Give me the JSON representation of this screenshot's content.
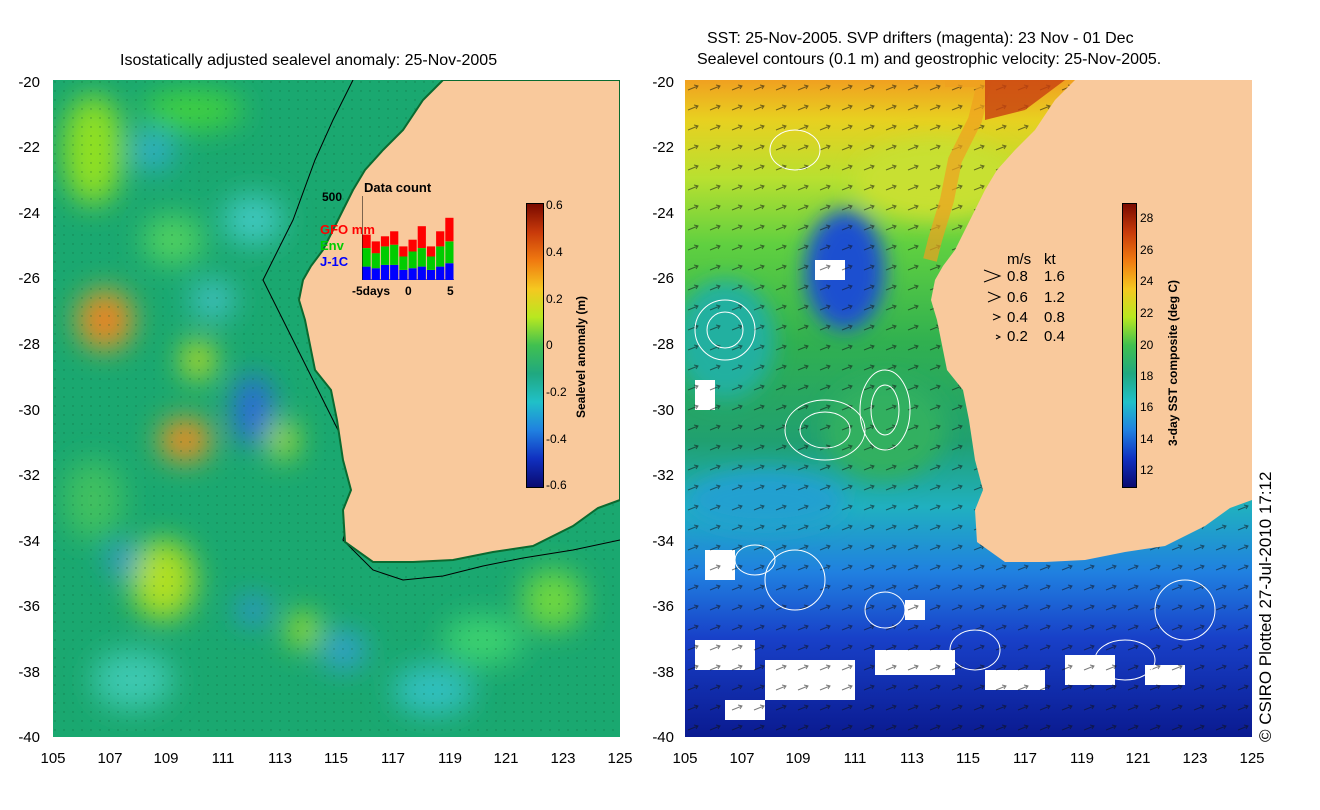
{
  "left_panel": {
    "title": "Isostatically adjusted sealevel anomaly: 25-Nov-2005",
    "lat_ticks": [
      "-20",
      "-22",
      "-24",
      "-26",
      "-28",
      "-30",
      "-32",
      "-34",
      "-36",
      "-38",
      "-40"
    ],
    "lon_ticks": [
      "105",
      "107",
      "109",
      "111",
      "113",
      "115",
      "117",
      "119",
      "121",
      "123",
      "125"
    ],
    "colorbar": {
      "label": "Sealevel anomaly (m)",
      "ticks": [
        "0.6",
        "0.4",
        "0.2",
        "0",
        "-0.2",
        "-0.4",
        "-0.6"
      ],
      "range": [
        -0.6,
        0.6
      ]
    },
    "data_count": {
      "title": "Data count",
      "max_label": "500",
      "x_labels": [
        "-5days",
        "0",
        "5"
      ],
      "legend": [
        {
          "name": "GFO mm",
          "color": "#ff0000"
        },
        {
          "name": "Env",
          "color": "#00cc00"
        },
        {
          "name": "J-1C",
          "color": "#0000ff"
        }
      ],
      "bars": [
        {
          "j1c": 80,
          "env": 110,
          "gfo": 80
        },
        {
          "j1c": 70,
          "env": 90,
          "gfo": 70
        },
        {
          "j1c": 90,
          "env": 110,
          "gfo": 60
        },
        {
          "j1c": 90,
          "env": 120,
          "gfo": 80
        },
        {
          "j1c": 60,
          "env": 80,
          "gfo": 60
        },
        {
          "j1c": 70,
          "env": 100,
          "gfo": 70
        },
        {
          "j1c": 80,
          "env": 110,
          "gfo": 130
        },
        {
          "j1c": 60,
          "env": 80,
          "gfo": 60
        },
        {
          "j1c": 80,
          "env": 120,
          "gfo": 90
        },
        {
          "j1c": 100,
          "env": 130,
          "gfo": 140
        }
      ]
    }
  },
  "right_panel": {
    "title_line1": "SST: 25-Nov-2005. SVP drifters (magenta): 23 Nov - 01 Dec",
    "title_line2": "Sealevel contours (0.1 m) and geostrophic velocity: 25-Nov-2005.",
    "lat_ticks": [
      "-20",
      "-22",
      "-24",
      "-26",
      "-28",
      "-30",
      "-32",
      "-34",
      "-36",
      "-38",
      "-40"
    ],
    "lon_ticks": [
      "105",
      "107",
      "109",
      "111",
      "113",
      "115",
      "117",
      "119",
      "121",
      "123",
      "125"
    ],
    "colorbar": {
      "label": "3-day SST composite (deg C)",
      "ticks": [
        "28",
        "26",
        "24",
        "22",
        "20",
        "18",
        "16",
        "14",
        "12"
      ],
      "range": [
        11,
        29
      ]
    },
    "velocity_legend": {
      "header_ms": "m/s",
      "header_kt": "kt",
      "rows": [
        {
          "ms": "0.8",
          "kt": "1.6"
        },
        {
          "ms": "0.6",
          "kt": "1.2"
        },
        {
          "ms": "0.4",
          "kt": "0.8"
        },
        {
          "ms": "0.2",
          "kt": "0.4"
        }
      ]
    }
  },
  "credit": "© CSIRO Plotted 27-Jul-2010 17:12",
  "colors": {
    "land": "#f9c99c",
    "ocean_left": "#20b27a",
    "ocean_right": "#2aa860"
  }
}
